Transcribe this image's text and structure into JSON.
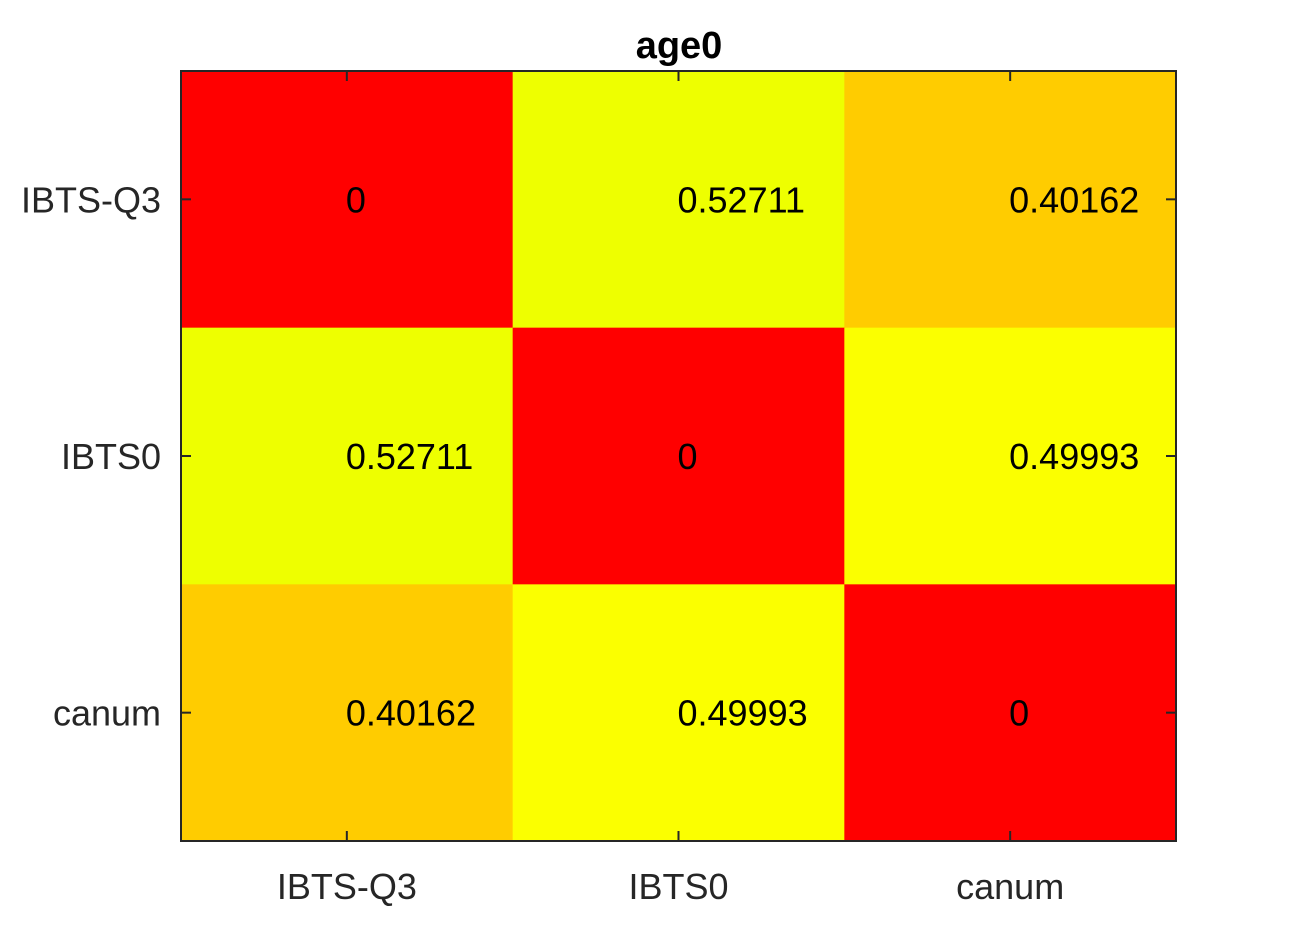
{
  "chart_data": {
    "type": "heatmap",
    "title": "age0",
    "x_categories": [
      "IBTS-Q3",
      "IBTS0",
      "canum"
    ],
    "y_categories": [
      "IBTS-Q3",
      "IBTS0",
      "canum"
    ],
    "values": [
      [
        0,
        0.52711,
        0.40162
      ],
      [
        0.52711,
        0,
        0.49993
      ],
      [
        0.40162,
        0.49993,
        0
      ]
    ],
    "value_labels": [
      [
        "0",
        "0.52711",
        "0.40162"
      ],
      [
        "0.52711",
        "0",
        "0.49993"
      ],
      [
        "0.40162",
        "0.49993",
        "0"
      ]
    ],
    "cell_colors": [
      [
        "#ff0000",
        "#eeff00",
        "#ffcc00"
      ],
      [
        "#eeff00",
        "#ff0000",
        "#fbff00"
      ],
      [
        "#ffcc00",
        "#fbff00",
        "#ff0000"
      ]
    ],
    "colormap": "autumn",
    "grid": false,
    "xlabel": "",
    "ylabel": ""
  }
}
